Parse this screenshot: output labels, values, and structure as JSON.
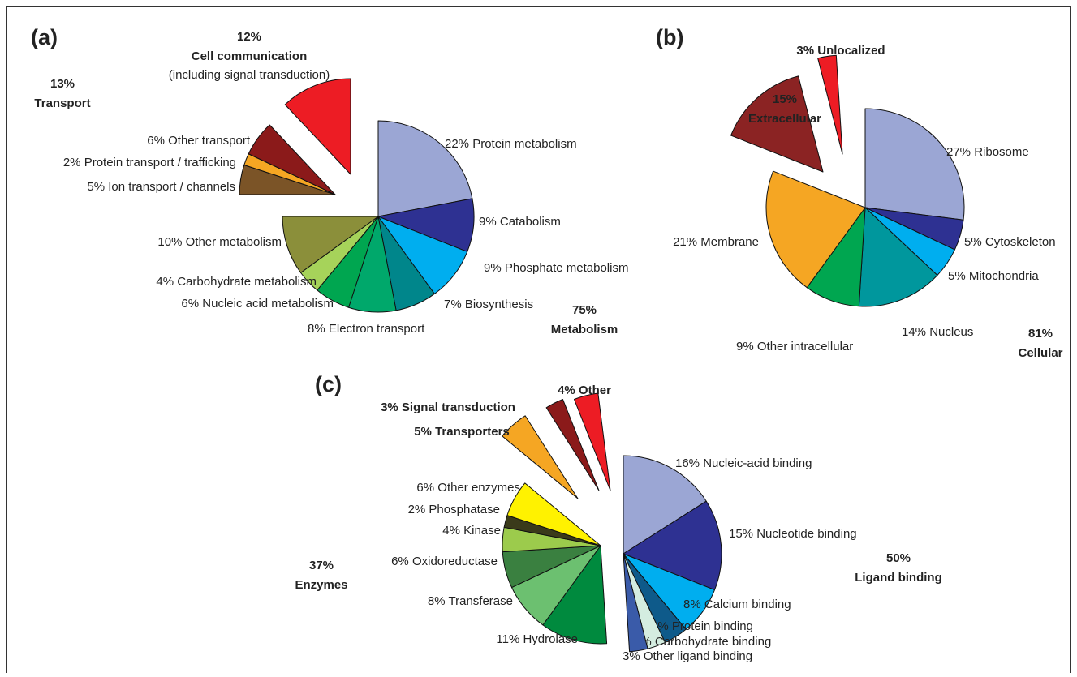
{
  "chart_data": [
    {
      "type": "pie",
      "label": "(a)",
      "groups": [
        {
          "name": "Metabolism",
          "value": 75,
          "value_label": "75%",
          "categories": [
            "Protein metabolism",
            "Catabolism",
            "Phosphate metabolism",
            "Biosynthesis",
            "Electron transport",
            "Nucleic acid metabolism",
            "Carbohydrate metabolism",
            "Other metabolism"
          ],
          "values": [
            22,
            9,
            9,
            7,
            8,
            6,
            4,
            10
          ],
          "value_labels": [
            "22%",
            "9%",
            "9%",
            "7%",
            "8%",
            "6%",
            "4%",
            "10%"
          ],
          "colors": [
            "#9ba6d4",
            "#2e3192",
            "#00aeef",
            "#00868b",
            "#00a86b",
            "#00a650",
            "#a6d35a",
            "#8b8f3a"
          ]
        },
        {
          "name": "Transport",
          "value": 13,
          "value_label": "13%",
          "categories": [
            "Ion transport / channels",
            "Protein transport / trafficking",
            "Other transport"
          ],
          "values": [
            5,
            2,
            6
          ],
          "value_labels": [
            "5%",
            "2%",
            "6%"
          ],
          "colors": [
            "#7b5427",
            "#f5a623",
            "#8b1a1a"
          ]
        },
        {
          "name": "Cell communication",
          "note": "(including signal transduction)",
          "value": 12,
          "value_label": "12%",
          "color": "#ed1c24"
        }
      ]
    },
    {
      "type": "pie",
      "label": "(b)",
      "groups": [
        {
          "name": "Cellular",
          "value": 81,
          "value_label": "81%",
          "categories": [
            "Ribosome",
            "Cytoskeleton",
            "Mitochondria",
            "Nucleus",
            "Other intracellular",
            "Membrane"
          ],
          "values": [
            27,
            5,
            5,
            14,
            9,
            21
          ],
          "value_labels": [
            "27%",
            "5%",
            "5%",
            "14%",
            "9%",
            "21%"
          ],
          "colors": [
            "#9ba6d4",
            "#2e3192",
            "#00aeef",
            "#00979d",
            "#00a650",
            "#f5a623"
          ]
        },
        {
          "name": "Extracellular",
          "value": 15,
          "value_label": "15%",
          "color": "#8b2323"
        },
        {
          "name": "Unlocalized",
          "value": 3,
          "value_label": "3%",
          "color": "#ed1c24"
        }
      ]
    },
    {
      "type": "pie",
      "label": "(c)",
      "groups": [
        {
          "name": "Ligand binding",
          "value": 50,
          "value_label": "50%",
          "categories": [
            "Nucleic-acid binding",
            "Nucleotide binding",
            "Calcium binding",
            "Protein binding",
            "Carbohydrate binding",
            "Other ligand binding"
          ],
          "values": [
            16,
            15,
            8,
            4,
            3,
            3
          ],
          "value_labels": [
            "16%",
            "15%",
            "8%",
            "4%",
            "3%",
            "3%"
          ],
          "colors": [
            "#9ba6d4",
            "#2e3192",
            "#00aeef",
            "#0e5a8a",
            "#d4ede0",
            "#3a5ba9"
          ]
        },
        {
          "name": "Enzymes",
          "value": 37,
          "value_label": "37%",
          "categories": [
            "Hydrolase",
            "Transferase",
            "Oxidoreductase",
            "Kinase",
            "Phosphatase",
            "Other enzymes"
          ],
          "values": [
            11,
            8,
            6,
            4,
            2,
            6
          ],
          "value_labels": [
            "11%",
            "8%",
            "6%",
            "4%",
            "2%",
            "6%"
          ],
          "colors": [
            "#008a3e",
            "#6cc070",
            "#3a8040",
            "#9ccb4c",
            "#3a3a1a",
            "#fff200"
          ]
        },
        {
          "name": "Transporters",
          "value": 5,
          "value_label": "5%",
          "color": "#f5a623"
        },
        {
          "name": "Signal transduction",
          "value": 3,
          "value_label": "3%",
          "color": "#8b1a1a"
        },
        {
          "name": "Other",
          "value": 4,
          "value_label": "4%",
          "color": "#ed1c24"
        }
      ]
    }
  ]
}
